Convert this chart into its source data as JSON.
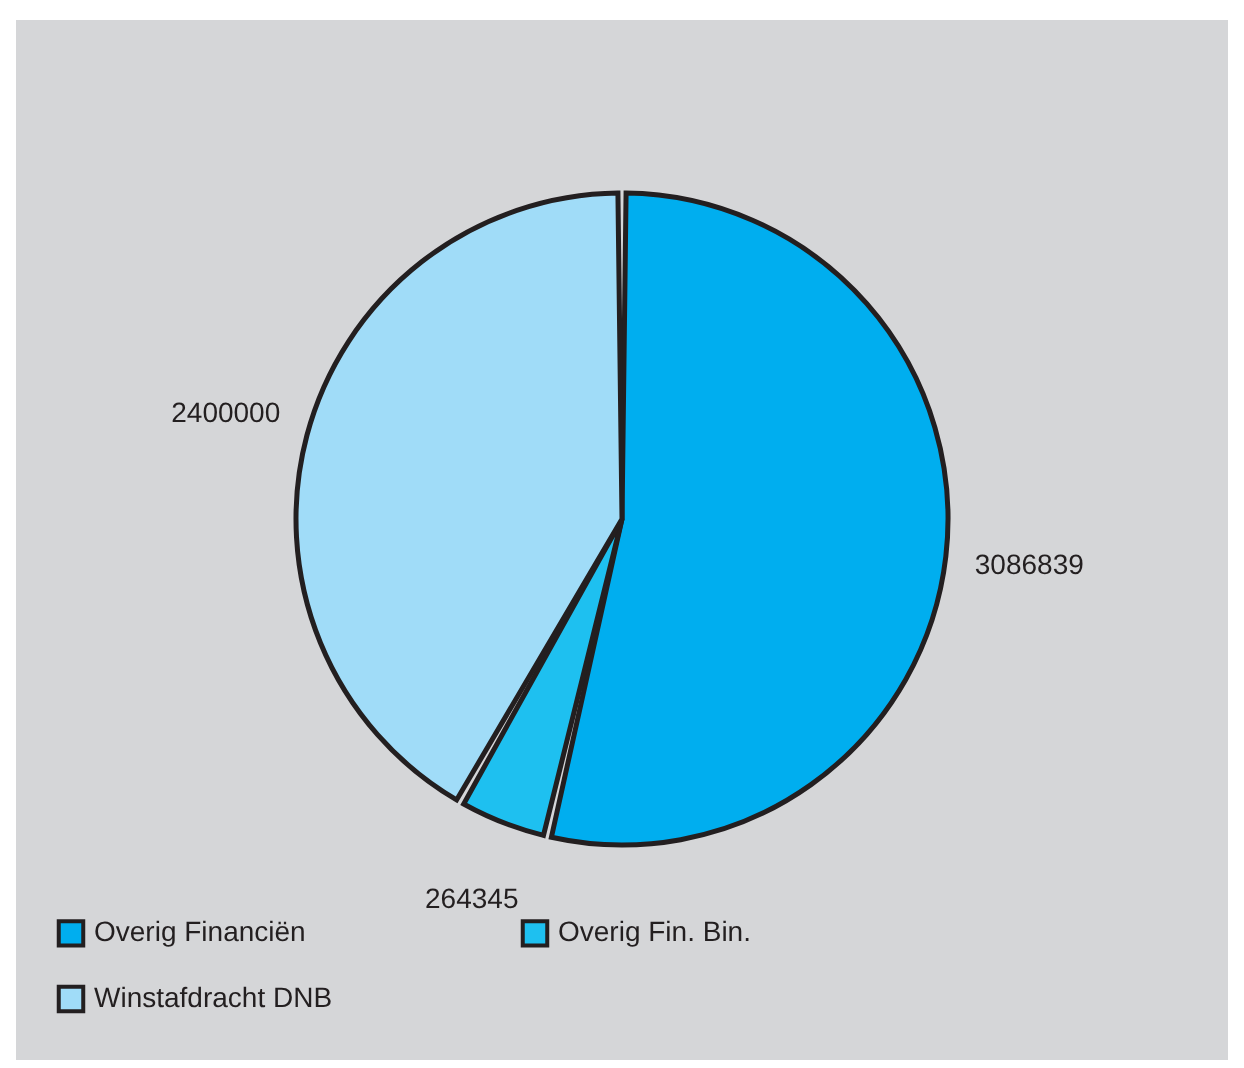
{
  "chart_data": {
    "type": "pie",
    "categories": [
      "Overig Financiën",
      "Overig Fin. Bin.",
      "Winstafdracht DNB"
    ],
    "values": [
      3086839,
      264345,
      2400000
    ],
    "colors": [
      "#00aeef",
      "#1ec0f0",
      "#a0dcf8"
    ],
    "data_labels": true,
    "legend": "bottom"
  }
}
